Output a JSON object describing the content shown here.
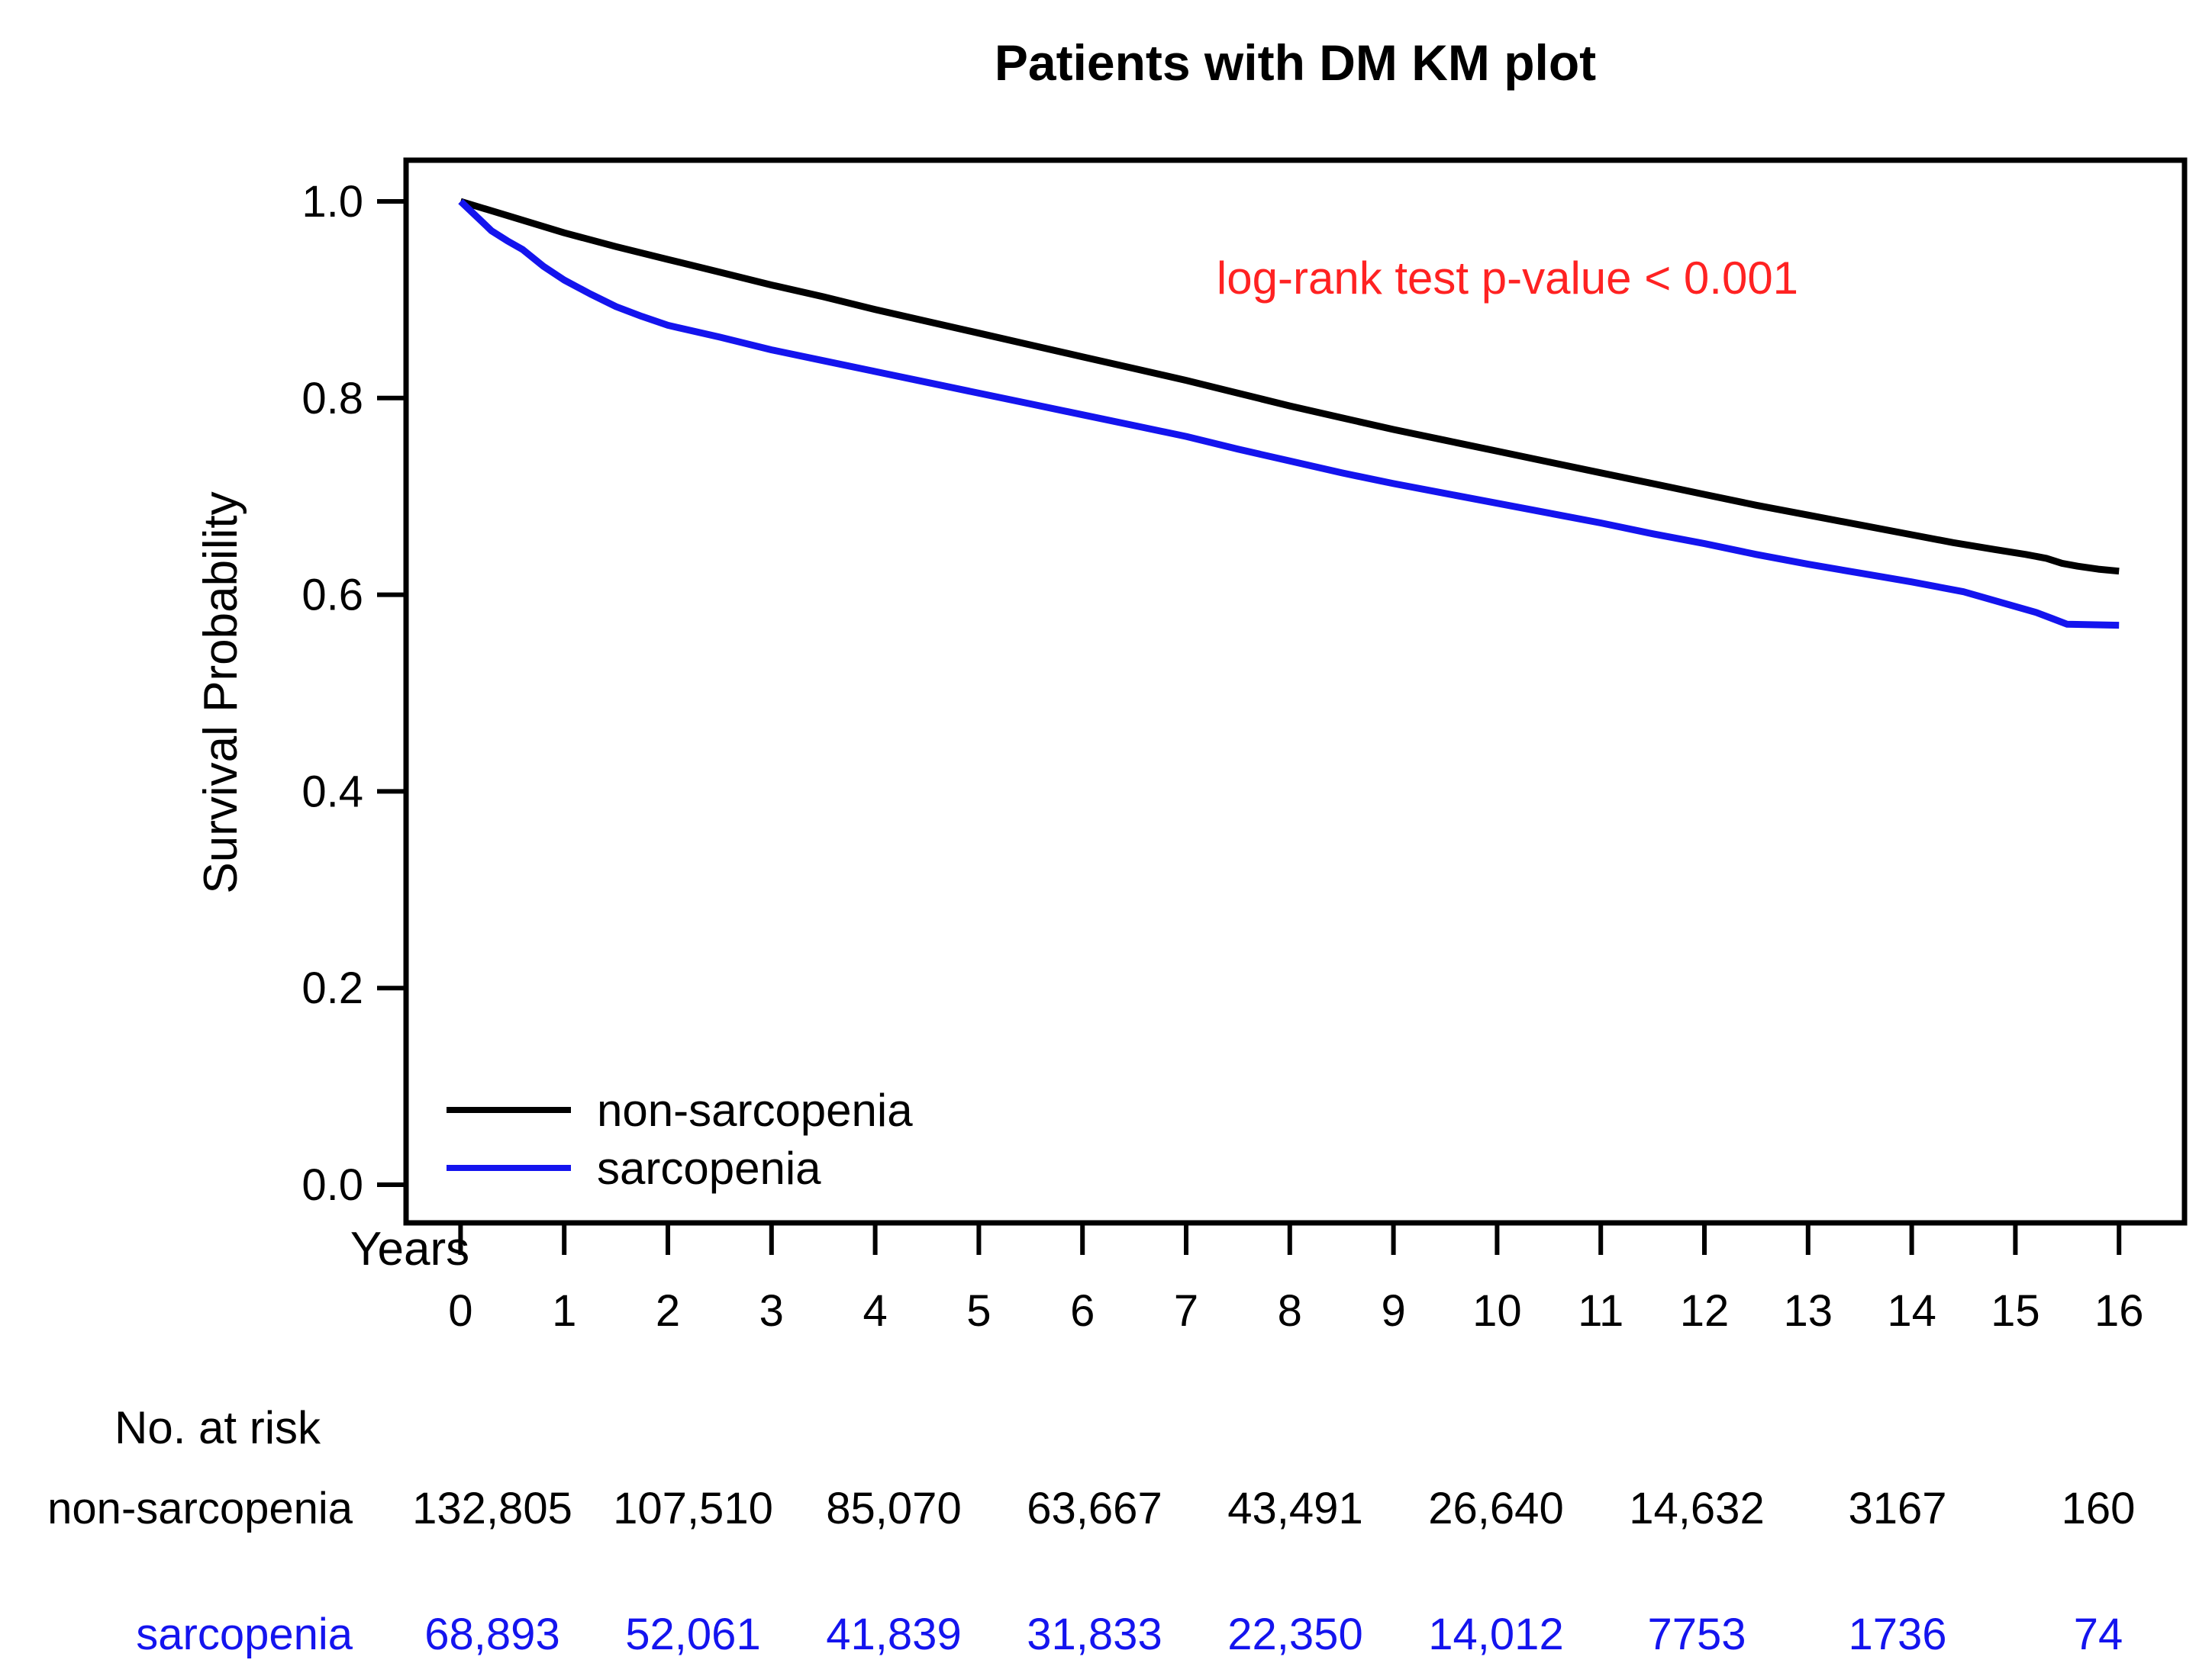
{
  "figure": {
    "background": "#ffffff"
  },
  "chart_data": {
    "type": "line",
    "subtype": "kaplan-meier-survival",
    "title": "Patients with DM KM plot",
    "xlabel": "Years",
    "ylabel": "Survival Probability",
    "xlim": [
      0,
      16
    ],
    "ylim": [
      0.0,
      1.0
    ],
    "xticks": [
      "0",
      "1",
      "2",
      "3",
      "4",
      "5",
      "6",
      "7",
      "8",
      "9",
      "10",
      "11",
      "12",
      "13",
      "14",
      "15",
      "16"
    ],
    "yticks": [
      "1.0",
      "0.8",
      "0.6",
      "0.4",
      "0.2",
      "0.0"
    ],
    "ytick_values": [
      1.0,
      0.8,
      0.6,
      0.4,
      0.2,
      0.0
    ],
    "grid": false,
    "legend_position": "bottom-left-inside",
    "annotation": {
      "text": "log-rank test p-value < 0.001",
      "color": "#ff2222"
    },
    "series": [
      {
        "name": "non-sarcopenia",
        "color": "#000000",
        "x": [
          0,
          0.5,
          1,
          1.5,
          2,
          2.5,
          3,
          3.5,
          4,
          4.5,
          5,
          5.5,
          6,
          6.5,
          7,
          7.5,
          8,
          8.5,
          9,
          9.5,
          10,
          10.5,
          11,
          11.5,
          12,
          12.5,
          13,
          13.5,
          14,
          14.4,
          14.8,
          15.1,
          15.3,
          15.45,
          15.6,
          15.8,
          16
        ],
        "y": [
          1.0,
          0.984,
          0.968,
          0.954,
          0.941,
          0.928,
          0.915,
          0.903,
          0.89,
          0.878,
          0.866,
          0.854,
          0.842,
          0.83,
          0.818,
          0.805,
          0.792,
          0.78,
          0.768,
          0.757,
          0.746,
          0.735,
          0.724,
          0.713,
          0.702,
          0.691,
          0.681,
          0.671,
          0.661,
          0.653,
          0.646,
          0.641,
          0.637,
          0.632,
          0.629,
          0.626,
          0.624
        ]
      },
      {
        "name": "sarcopenia",
        "color": "#1414ee",
        "x": [
          0,
          0.15,
          0.3,
          0.45,
          0.6,
          0.8,
          1,
          1.25,
          1.5,
          1.75,
          2,
          2.5,
          3,
          3.5,
          4,
          4.5,
          5,
          5.5,
          6,
          6.5,
          7,
          7.5,
          8,
          8.5,
          9,
          9.5,
          10,
          10.5,
          11,
          11.5,
          12,
          12.5,
          13,
          13.5,
          14,
          14.5,
          15,
          15.2,
          15.35,
          15.5,
          16
        ],
        "y": [
          1.0,
          0.985,
          0.97,
          0.96,
          0.951,
          0.934,
          0.92,
          0.906,
          0.893,
          0.883,
          0.874,
          0.862,
          0.849,
          0.838,
          0.827,
          0.816,
          0.805,
          0.794,
          0.783,
          0.772,
          0.761,
          0.748,
          0.736,
          0.724,
          0.713,
          0.703,
          0.693,
          0.683,
          0.673,
          0.662,
          0.652,
          0.641,
          0.631,
          0.622,
          0.613,
          0.603,
          0.588,
          0.582,
          0.576,
          0.57,
          0.569
        ]
      }
    ],
    "risk_table": {
      "header": "No. at risk",
      "years": [
        0,
        2,
        4,
        6,
        8,
        10,
        12,
        14,
        16
      ],
      "rows": [
        {
          "label": "non-sarcopenia",
          "color": "#000000",
          "values": [
            "132,805",
            "107,510",
            "85,070",
            "63,667",
            "43,491",
            "26,640",
            "14,632",
            "3167",
            "160"
          ]
        },
        {
          "label": "sarcopenia",
          "color": "#1414ee",
          "values": [
            "68,893",
            "52,061",
            "41,839",
            "31,833",
            "22,350",
            "14,012",
            "7753",
            "1736",
            "74"
          ]
        }
      ]
    }
  }
}
